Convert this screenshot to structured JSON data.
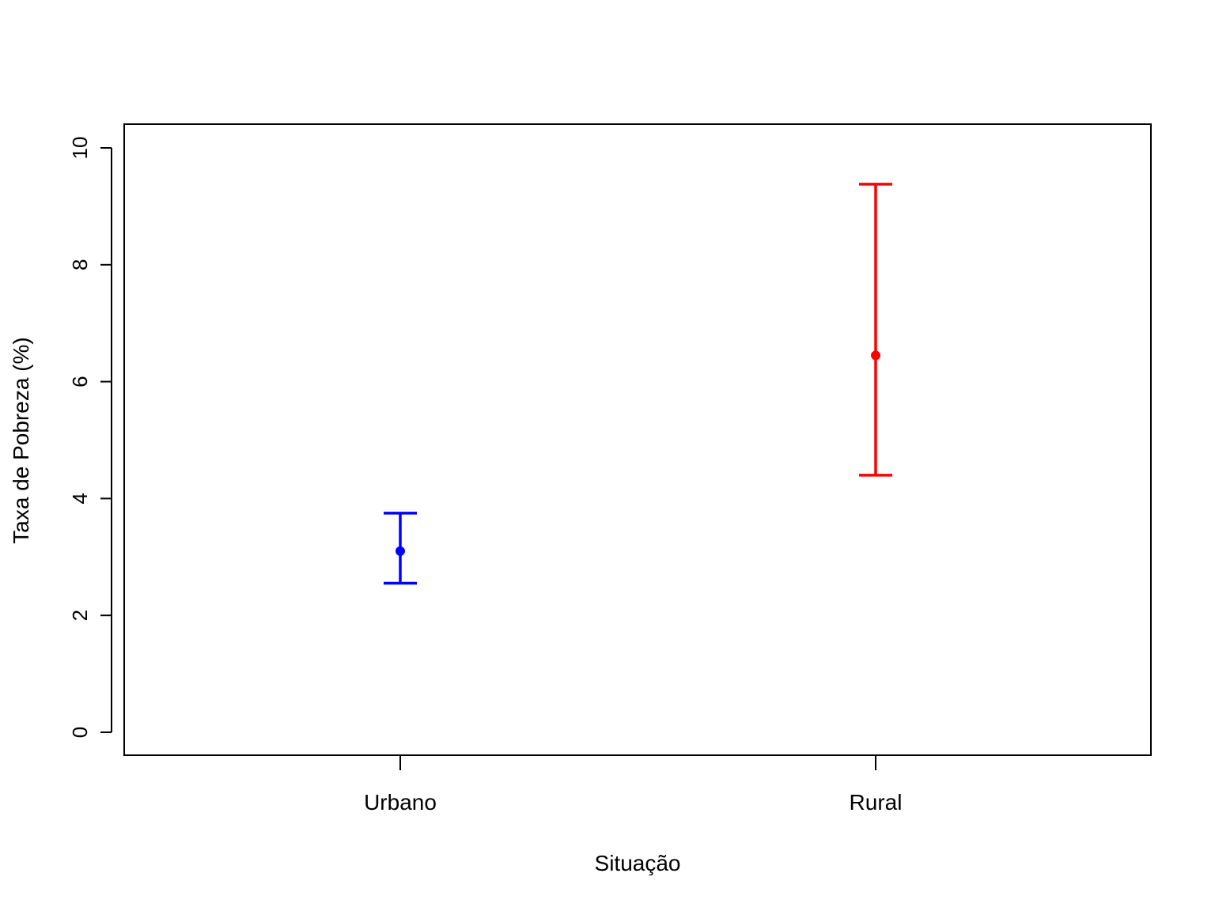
{
  "chart_data": {
    "type": "errorbar",
    "xlabel": "Situação",
    "ylabel": "Taxa de Pobreza (%)",
    "ylim": [
      0,
      10
    ],
    "yticks": [
      0,
      2,
      4,
      6,
      8,
      10
    ],
    "grid": false,
    "categories": [
      "Urbano",
      "Rural"
    ],
    "points": [
      {
        "category": "Urbano",
        "value": 3.1,
        "lower": 2.55,
        "upper": 3.75,
        "color": "#0000ff"
      },
      {
        "category": "Rural",
        "value": 6.45,
        "lower": 4.4,
        "upper": 9.38,
        "color": "#ff0000"
      }
    ]
  }
}
